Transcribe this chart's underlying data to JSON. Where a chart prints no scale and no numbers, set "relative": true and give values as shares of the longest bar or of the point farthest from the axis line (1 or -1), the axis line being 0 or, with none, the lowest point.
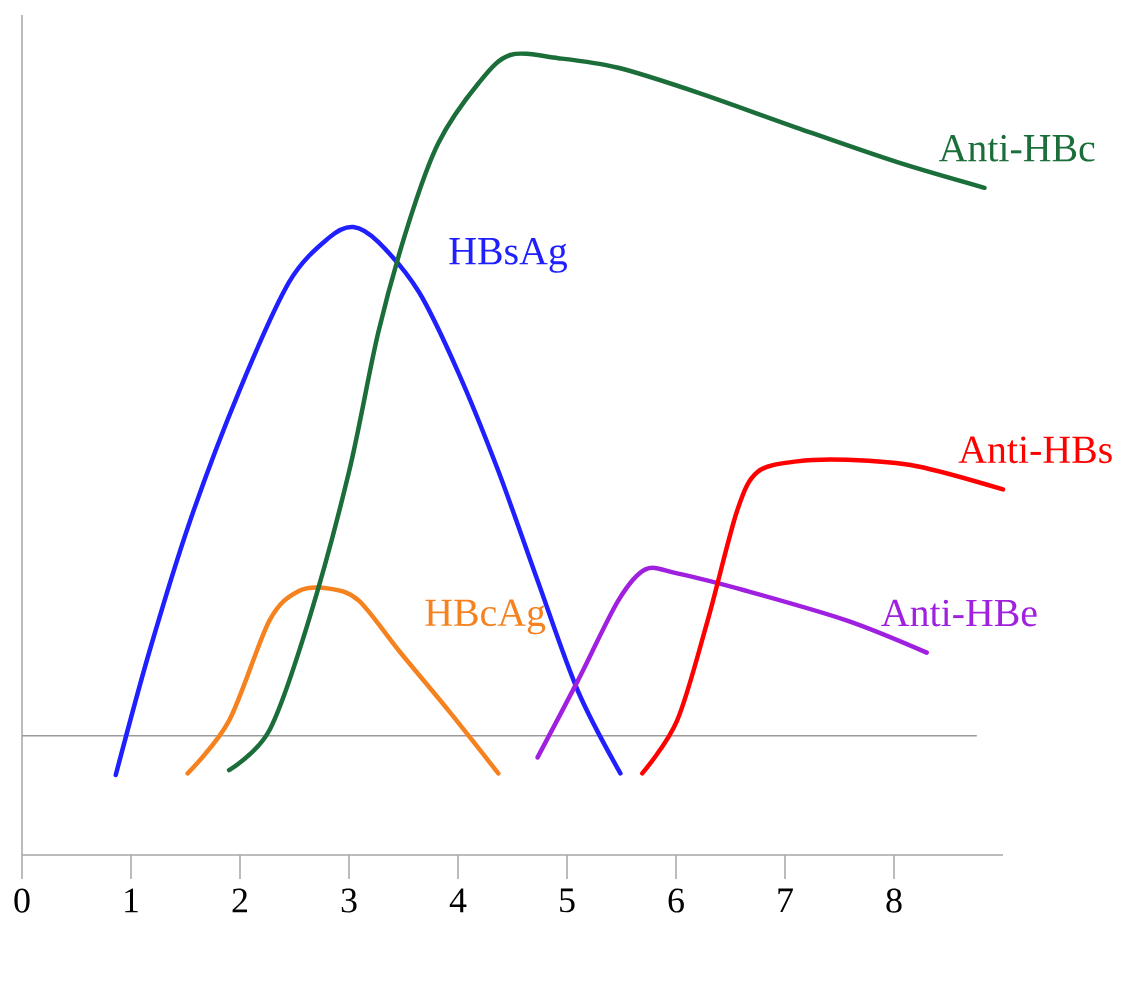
{
  "chart_data": {
    "type": "line",
    "relative": true,
    "marker": "none",
    "line_style": "solid",
    "xlim": [
      0,
      9
    ],
    "xticks": [
      0,
      1,
      2,
      3,
      4,
      5,
      6,
      7,
      8
    ],
    "ref_lines": [
      {
        "axis": "y",
        "value": 0.149,
        "color": "#9a9a9a"
      }
    ],
    "series": [
      {
        "name": "HBsAg",
        "color": "#1f1fff",
        "x": [
          0.86,
          1.17,
          1.54,
          1.99,
          2.45,
          2.82,
          3.04,
          3.27,
          3.64,
          4.0,
          4.37,
          4.73,
          5.1,
          5.49
        ],
        "values": [
          0.1,
          0.255,
          0.417,
          0.579,
          0.716,
          0.772,
          0.785,
          0.766,
          0.704,
          0.604,
          0.48,
          0.343,
          0.205,
          0.102
        ]
      },
      {
        "name": "HBcAg",
        "color": "#f5821f",
        "x": [
          1.52,
          1.9,
          2.27,
          2.54,
          2.82,
          3.09,
          3.46,
          3.91,
          4.37
        ],
        "values": [
          0.102,
          0.168,
          0.293,
          0.33,
          0.333,
          0.318,
          0.255,
          0.181,
          0.102
        ]
      },
      {
        "name": "Anti-HBc",
        "color": "#1b6e3a",
        "x": [
          1.9,
          2.27,
          2.63,
          3.0,
          3.27,
          3.55,
          3.82,
          4.19,
          4.48,
          4.92,
          5.47,
          6.2,
          7.11,
          8.03,
          8.83
        ],
        "values": [
          0.106,
          0.156,
          0.293,
          0.479,
          0.654,
          0.791,
          0.89,
          0.965,
          1.0,
          0.996,
          0.984,
          0.953,
          0.909,
          0.866,
          0.834
        ]
      },
      {
        "name": "Anti-HBe",
        "color": "#a020e0",
        "x": [
          4.73,
          5.1,
          5.47,
          5.72,
          6.01,
          6.65,
          7.57,
          8.3
        ],
        "values": [
          0.122,
          0.218,
          0.318,
          0.357,
          0.352,
          0.33,
          0.293,
          0.253
        ]
      },
      {
        "name": "Anti-HBs",
        "color": "#ff0000",
        "x": [
          5.69,
          6.01,
          6.29,
          6.56,
          6.75,
          7.11,
          7.57,
          8.21,
          9.0
        ],
        "values": [
          0.102,
          0.168,
          0.293,
          0.43,
          0.479,
          0.492,
          0.494,
          0.486,
          0.457
        ]
      }
    ]
  }
}
